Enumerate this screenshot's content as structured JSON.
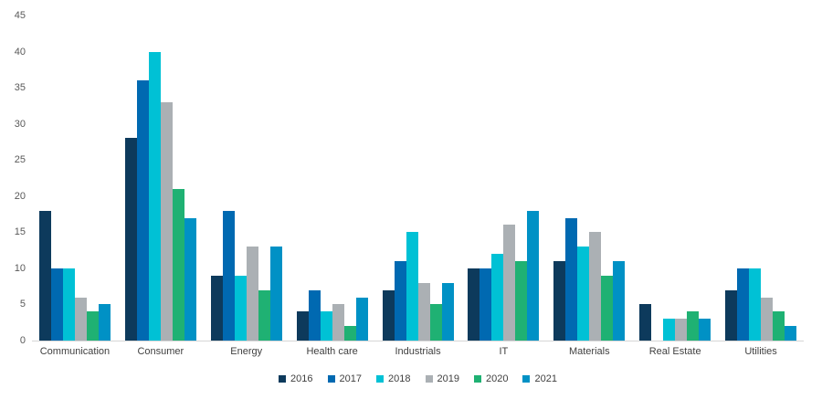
{
  "chart_data": {
    "type": "bar",
    "title": "",
    "xlabel": "",
    "ylabel": "",
    "ylim": [
      0,
      45
    ],
    "ytick_step": 5,
    "yticks": [
      "45",
      "40",
      "35",
      "30",
      "25",
      "20",
      "15",
      "10",
      "5",
      "0"
    ],
    "grid": false,
    "legend_position": "bottom",
    "baseline_color": "#d6d6d6",
    "tick_label_color": "#595959",
    "category_label_color": "#404040",
    "categories": [
      "Communication",
      "Consumer",
      "Energy",
      "Health care",
      "Industrials",
      "IT",
      "Materials",
      "Real Estate",
      "Utilities"
    ],
    "series": [
      {
        "name": "2016",
        "color": "#0d3a5c",
        "values": [
          18,
          28,
          9,
          4,
          7,
          10,
          11,
          5,
          7
        ]
      },
      {
        "name": "2017",
        "color": "#0069b1",
        "values": [
          10,
          36,
          18,
          7,
          11,
          10,
          17,
          0,
          10
        ]
      },
      {
        "name": "2018",
        "color": "#00c1d5",
        "values": [
          10,
          40,
          9,
          4,
          15,
          12,
          13,
          3,
          10
        ]
      },
      {
        "name": "2019",
        "color": "#abb0b4",
        "values": [
          6,
          33,
          13,
          5,
          8,
          16,
          15,
          3,
          6
        ]
      },
      {
        "name": "2020",
        "color": "#1fb173",
        "values": [
          4,
          21,
          7,
          2,
          5,
          11,
          9,
          4,
          4
        ]
      },
      {
        "name": "2021",
        "color": "#0091c5",
        "values": [
          5,
          17,
          13,
          6,
          8,
          18,
          11,
          3,
          2
        ]
      }
    ]
  }
}
